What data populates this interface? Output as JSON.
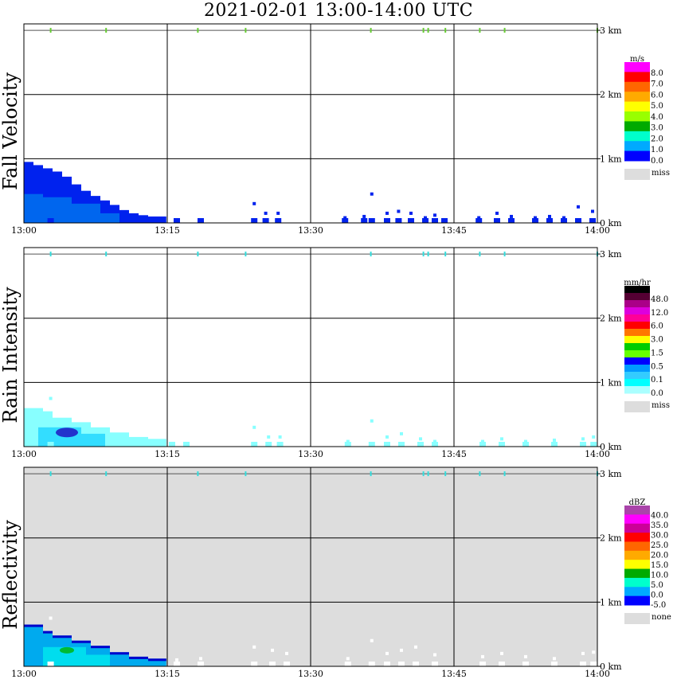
{
  "title": "2021-02-01   13:00-14:00 UTC",
  "time_labels": [
    "13:00",
    "13:15",
    "13:30",
    "13:45",
    "14:00"
  ],
  "height_labels": [
    "3 km",
    "2 km",
    "1 km",
    "0 km"
  ],
  "colors": {
    "grid": "#000000",
    "ground_mark_fv": "#66cc33",
    "ground_mark_other": "#33dddd",
    "refl_background": "#dddddd"
  },
  "chart_data": [
    {
      "type": "heatmap",
      "panel": "Fall Velocity",
      "xlabel": "",
      "ylabel": "Fall Velocity",
      "x_ticks": [
        "13:00",
        "13:15",
        "13:30",
        "13:45",
        "14:00"
      ],
      "y_ticks": [
        "0 km",
        "1 km",
        "2 km",
        "3 km"
      ],
      "ylim": [
        0,
        3.1
      ],
      "colorbar": {
        "unit": "m/s",
        "labels": [
          "8.0",
          "7.0",
          "6.0",
          "5.0",
          "4.0",
          "3.0",
          "2.0",
          "1.0",
          "0.0"
        ],
        "colors": [
          "#ff00ff",
          "#ff0000",
          "#ff6600",
          "#ffaa00",
          "#ffff00",
          "#99ff00",
          "#00aa00",
          "#00ffcc",
          "#00aaff",
          "#0000ff"
        ],
        "miss_label": "miss"
      },
      "echo": [
        {
          "t0": 0.0,
          "t1": 1.0,
          "h": 0.95
        },
        {
          "t0": 1.0,
          "t1": 2.0,
          "h": 0.9
        },
        {
          "t0": 2.0,
          "t1": 3.0,
          "h": 0.85
        },
        {
          "t0": 3.0,
          "t1": 4.0,
          "h": 0.8
        },
        {
          "t0": 4.0,
          "t1": 5.0,
          "h": 0.72
        },
        {
          "t0": 5.0,
          "t1": 6.0,
          "h": 0.6
        },
        {
          "t0": 6.0,
          "t1": 7.0,
          "h": 0.5
        },
        {
          "t0": 7.0,
          "t1": 8.0,
          "h": 0.42
        },
        {
          "t0": 8.0,
          "t1": 9.0,
          "h": 0.35
        },
        {
          "t0": 9.0,
          "t1": 10.0,
          "h": 0.28
        },
        {
          "t0": 10.0,
          "t1": 11.0,
          "h": 0.2
        },
        {
          "t0": 11.0,
          "t1": 12.0,
          "h": 0.15
        },
        {
          "t0": 12.0,
          "t1": 13.0,
          "h": 0.12
        },
        {
          "t0": 13.0,
          "t1": 14.9,
          "h": 0.1
        }
      ],
      "core": [
        {
          "t0": 0.0,
          "t1": 2.0,
          "h": 0.45
        },
        {
          "t0": 2.0,
          "t1": 5.0,
          "h": 0.4
        },
        {
          "t0": 5.0,
          "t1": 8.0,
          "h": 0.3
        },
        {
          "t0": 8.0,
          "t1": 10.0,
          "h": 0.15
        }
      ],
      "speckles": [
        {
          "t": 2.8,
          "h": 0.75
        },
        {
          "t": 16.0,
          "h": 0.05
        },
        {
          "t": 18.5,
          "h": 0.05
        },
        {
          "t": 24.1,
          "h": 0.3
        },
        {
          "t": 25.3,
          "h": 0.15
        },
        {
          "t": 26.6,
          "h": 0.15
        },
        {
          "t": 33.6,
          "h": 0.08
        },
        {
          "t": 35.6,
          "h": 0.1
        },
        {
          "t": 36.4,
          "h": 0.45
        },
        {
          "t": 38.0,
          "h": 0.15
        },
        {
          "t": 39.2,
          "h": 0.18
        },
        {
          "t": 40.5,
          "h": 0.15
        },
        {
          "t": 42.0,
          "h": 0.08
        },
        {
          "t": 43.0,
          "h": 0.12
        },
        {
          "t": 44.0,
          "h": 0.05
        },
        {
          "t": 47.6,
          "h": 0.08
        },
        {
          "t": 49.5,
          "h": 0.15
        },
        {
          "t": 51.0,
          "h": 0.1
        },
        {
          "t": 53.5,
          "h": 0.08
        },
        {
          "t": 55.0,
          "h": 0.1
        },
        {
          "t": 56.5,
          "h": 0.08
        },
        {
          "t": 58.0,
          "h": 0.25
        },
        {
          "t": 59.5,
          "h": 0.18
        }
      ],
      "marks": [
        2.8,
        8.6,
        18.2,
        23.2,
        36.3,
        41.8,
        42.3,
        44.1,
        47.7,
        50.3,
        60.0
      ]
    },
    {
      "type": "heatmap",
      "panel": "Rain Intensity",
      "xlabel": "",
      "ylabel": "Rain Intensity",
      "x_ticks": [
        "13:00",
        "13:15",
        "13:30",
        "13:45",
        "14:00"
      ],
      "y_ticks": [
        "0 km",
        "1 km",
        "2 km",
        "3 km"
      ],
      "ylim": [
        0,
        3.1
      ],
      "colorbar": {
        "unit": "mm/hr",
        "labels": [
          "48.0",
          "12.0",
          "6.0",
          "3.0",
          "1.5",
          "0.5",
          "0.1",
          "0.0"
        ],
        "colors": [
          "#000000",
          "#550033",
          "#aa0088",
          "#dd00dd",
          "#ff0099",
          "#ff0000",
          "#ff7700",
          "#ffff00",
          "#00cc00",
          "#66ff00",
          "#0000ff",
          "#0099ff",
          "#33ccff",
          "#00ffff",
          "#aaffff"
        ],
        "miss_label": "miss"
      },
      "echo": [
        {
          "t0": 0.0,
          "t1": 2.0,
          "h": 0.6
        },
        {
          "t0": 2.0,
          "t1": 3.0,
          "h": 0.55
        },
        {
          "t0": 3.0,
          "t1": 5.0,
          "h": 0.45
        },
        {
          "t0": 5.0,
          "t1": 7.0,
          "h": 0.38
        },
        {
          "t0": 7.0,
          "t1": 9.0,
          "h": 0.3
        },
        {
          "t0": 9.0,
          "t1": 11.0,
          "h": 0.22
        },
        {
          "t0": 11.0,
          "t1": 13.0,
          "h": 0.15
        },
        {
          "t0": 13.0,
          "t1": 14.9,
          "h": 0.12
        }
      ],
      "core": [
        {
          "t0": 1.5,
          "t1": 6.0,
          "h": 0.3
        },
        {
          "t0": 6.0,
          "t1": 8.5,
          "h": 0.2
        }
      ],
      "speckles": [
        {
          "t": 2.8,
          "h": 0.75
        },
        {
          "t": 15.5,
          "h": 0.05
        },
        {
          "t": 17.0,
          "h": 0.05
        },
        {
          "t": 24.1,
          "h": 0.3
        },
        {
          "t": 25.6,
          "h": 0.15
        },
        {
          "t": 26.8,
          "h": 0.15
        },
        {
          "t": 33.9,
          "h": 0.08
        },
        {
          "t": 36.4,
          "h": 0.4
        },
        {
          "t": 38.0,
          "h": 0.15
        },
        {
          "t": 39.5,
          "h": 0.2
        },
        {
          "t": 41.5,
          "h": 0.12
        },
        {
          "t": 43.0,
          "h": 0.08
        },
        {
          "t": 48.0,
          "h": 0.08
        },
        {
          "t": 50.0,
          "h": 0.12
        },
        {
          "t": 52.5,
          "h": 0.08
        },
        {
          "t": 55.5,
          "h": 0.1
        },
        {
          "t": 58.5,
          "h": 0.12
        },
        {
          "t": 59.6,
          "h": 0.15
        }
      ],
      "marks": [
        2.8,
        8.6,
        18.2,
        23.2,
        36.3,
        41.8,
        42.3,
        44.1,
        47.7,
        50.3,
        60.0
      ]
    },
    {
      "type": "heatmap",
      "panel": "Reflectivity",
      "xlabel": "",
      "ylabel": "Reflectivity",
      "x_ticks": [
        "13:00",
        "13:15",
        "13:30",
        "13:45",
        "14:00"
      ],
      "y_ticks": [
        "0 km",
        "1 km",
        "2 km",
        "3 km"
      ],
      "ylim": [
        0,
        3.1
      ],
      "colorbar": {
        "unit": "dBZ",
        "labels": [
          "40.0",
          "35.0",
          "30.0",
          "25.0",
          "20.0",
          "15.0",
          "10.0",
          "5.0",
          "0.0",
          "-5.0"
        ],
        "colors": [
          "#aa44aa",
          "#ff00ff",
          "#cc0099",
          "#ff0000",
          "#ff6600",
          "#ffaa00",
          "#ffff00",
          "#00aa00",
          "#00ffcc",
          "#00aaff",
          "#0000ff"
        ],
        "miss_label": "none"
      },
      "echo": [
        {
          "t0": 0.0,
          "t1": 2.0,
          "h": 0.65
        },
        {
          "t0": 2.0,
          "t1": 3.0,
          "h": 0.55
        },
        {
          "t0": 3.0,
          "t1": 5.0,
          "h": 0.48
        },
        {
          "t0": 5.0,
          "t1": 7.0,
          "h": 0.4
        },
        {
          "t0": 7.0,
          "t1": 9.0,
          "h": 0.32
        },
        {
          "t0": 9.0,
          "t1": 11.0,
          "h": 0.22
        },
        {
          "t0": 11.0,
          "t1": 13.0,
          "h": 0.15
        },
        {
          "t0": 13.0,
          "t1": 14.9,
          "h": 0.12
        }
      ],
      "core": [
        {
          "t0": 2.0,
          "t1": 6.5,
          "h": 0.3
        },
        {
          "t0": 6.5,
          "t1": 9.0,
          "h": 0.18
        }
      ],
      "speckles": [
        {
          "t": 2.8,
          "h": 0.75
        },
        {
          "t": 16.0,
          "h": 0.1
        },
        {
          "t": 18.5,
          "h": 0.12
        },
        {
          "t": 24.1,
          "h": 0.3
        },
        {
          "t": 26.0,
          "h": 0.25
        },
        {
          "t": 27.5,
          "h": 0.2
        },
        {
          "t": 33.9,
          "h": 0.12
        },
        {
          "t": 36.4,
          "h": 0.4
        },
        {
          "t": 38.0,
          "h": 0.2
        },
        {
          "t": 39.5,
          "h": 0.25
        },
        {
          "t": 41.0,
          "h": 0.3
        },
        {
          "t": 43.0,
          "h": 0.18
        },
        {
          "t": 48.0,
          "h": 0.15
        },
        {
          "t": 50.0,
          "h": 0.2
        },
        {
          "t": 52.5,
          "h": 0.15
        },
        {
          "t": 55.5,
          "h": 0.12
        },
        {
          "t": 58.5,
          "h": 0.2
        },
        {
          "t": 59.6,
          "h": 0.22
        }
      ],
      "marks": [
        2.8,
        8.6,
        18.2,
        23.2,
        36.3,
        41.8,
        42.3,
        44.1,
        47.7,
        50.3,
        60.0
      ]
    }
  ]
}
